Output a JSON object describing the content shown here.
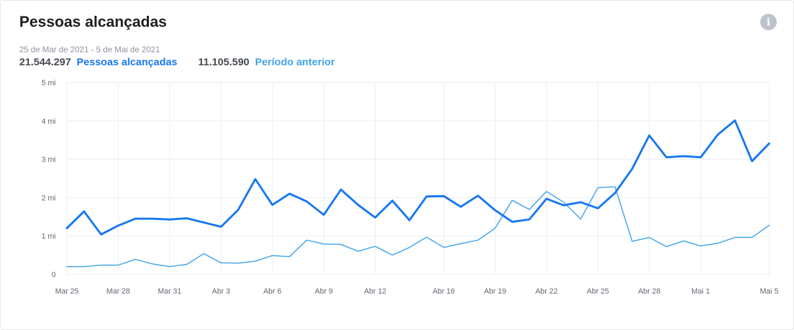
{
  "header": {
    "title": "Pessoas alcançadas",
    "date_range": "25 de Mar de 2021 - 5 de Mai de 2021",
    "current_value": "21.544.297",
    "current_label": "Pessoas alcançadas",
    "previous_value": "11.105.590",
    "previous_label": "Período anterior",
    "info_icon": "info-icon"
  },
  "colors": {
    "current": "#1877f2",
    "previous": "#42a5e9",
    "grid": "#ebedf0"
  },
  "chart_data": {
    "type": "line",
    "title": "Pessoas alcançadas",
    "xlabel": "",
    "ylabel": "",
    "ylim": [
      0,
      5000000
    ],
    "y_ticks": [
      {
        "value": 0,
        "label": "0"
      },
      {
        "value": 1000000,
        "label": "1 mi"
      },
      {
        "value": 2000000,
        "label": "2 mi"
      },
      {
        "value": 3000000,
        "label": "3 mi"
      },
      {
        "value": 4000000,
        "label": "4 mi"
      },
      {
        "value": 5000000,
        "label": "5 mi"
      }
    ],
    "x": [
      "2021-03-25",
      "2021-03-26",
      "2021-03-27",
      "2021-03-28",
      "2021-03-29",
      "2021-03-30",
      "2021-03-31",
      "2021-04-01",
      "2021-04-02",
      "2021-04-03",
      "2021-04-04",
      "2021-04-05",
      "2021-04-06",
      "2021-04-07",
      "2021-04-08",
      "2021-04-09",
      "2021-04-10",
      "2021-04-11",
      "2021-04-12",
      "2021-04-13",
      "2021-04-14",
      "2021-04-15",
      "2021-04-16",
      "2021-04-17",
      "2021-04-18",
      "2021-04-19",
      "2021-04-20",
      "2021-04-21",
      "2021-04-22",
      "2021-04-23",
      "2021-04-24",
      "2021-04-25",
      "2021-04-26",
      "2021-04-27",
      "2021-04-28",
      "2021-04-29",
      "2021-04-30",
      "2021-05-01",
      "2021-05-02",
      "2021-05-03",
      "2021-05-04",
      "2021-05-05"
    ],
    "x_tick_labels": [
      {
        "index": 0,
        "label": "Mar 25"
      },
      {
        "index": 3,
        "label": "Mar 28"
      },
      {
        "index": 6,
        "label": "Mar 31"
      },
      {
        "index": 9,
        "label": "Abr 3"
      },
      {
        "index": 12,
        "label": "Abr 6"
      },
      {
        "index": 15,
        "label": "Abr 9"
      },
      {
        "index": 18,
        "label": "Abr 12"
      },
      {
        "index": 22,
        "label": "Abr 16"
      },
      {
        "index": 25,
        "label": "Abr 19"
      },
      {
        "index": 28,
        "label": "Abr 22"
      },
      {
        "index": 31,
        "label": "Abr 25"
      },
      {
        "index": 34,
        "label": "Abr 28"
      },
      {
        "index": 37,
        "label": "Mai 1"
      },
      {
        "index": 41,
        "label": "Mai 5"
      }
    ],
    "grid": true,
    "legend": "top-left",
    "series": [
      {
        "name": "Pessoas alcançadas",
        "values": [
          1200000,
          1640000,
          1040000,
          1270000,
          1450000,
          1450000,
          1430000,
          1460000,
          1350000,
          1240000,
          1680000,
          2480000,
          1810000,
          2100000,
          1900000,
          1550000,
          2210000,
          1810000,
          1480000,
          1920000,
          1410000,
          2030000,
          2040000,
          1760000,
          2050000,
          1670000,
          1370000,
          1430000,
          1970000,
          1800000,
          1880000,
          1720000,
          2120000,
          2750000,
          3620000,
          3050000,
          3080000,
          3050000,
          3640000,
          4010000,
          2950000,
          3410000
        ]
      },
      {
        "name": "Período anterior",
        "values": [
          200000,
          200000,
          240000,
          240000,
          390000,
          270000,
          200000,
          260000,
          540000,
          300000,
          290000,
          340000,
          490000,
          460000,
          890000,
          790000,
          780000,
          600000,
          730000,
          500000,
          700000,
          970000,
          700000,
          800000,
          890000,
          1200000,
          1930000,
          1690000,
          2160000,
          1880000,
          1440000,
          2260000,
          2280000,
          860000,
          960000,
          720000,
          870000,
          740000,
          810000,
          960000,
          960000,
          1280000
        ]
      }
    ]
  }
}
